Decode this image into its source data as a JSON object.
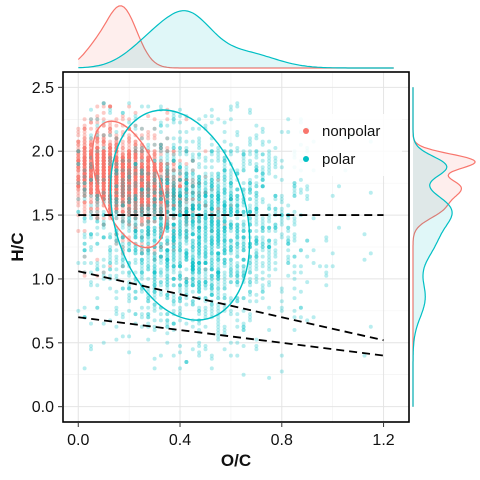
{
  "chart_data": {
    "type": "scatter",
    "xlabel": "O/C",
    "ylabel": "H/C",
    "xlim": [
      -0.06,
      1.3
    ],
    "ylim": [
      -0.12,
      2.62
    ],
    "xticks": [
      0.0,
      0.4,
      0.8,
      1.2
    ],
    "xtick_labels": [
      "0.0",
      "0.4",
      "0.8",
      "1.2"
    ],
    "yticks": [
      0.0,
      0.5,
      1.0,
      1.5,
      2.0,
      2.5
    ],
    "ytick_labels": [
      "0.0",
      "0.5",
      "1.0",
      "1.5",
      "2.0",
      "2.5"
    ],
    "grid": true,
    "legend_position": "top-right",
    "series": [
      {
        "name": "nonpolar",
        "color": "#F8766D",
        "point_count": 2600,
        "center": [
          0.18,
          1.78
        ],
        "spread": [
          0.1,
          0.13
        ],
        "ellipse": {
          "center": [
            0.2,
            1.74
          ],
          "semi_axes": [
            0.12,
            0.52
          ],
          "tilt_deg": 20
        }
      },
      {
        "name": "polar",
        "color": "#00BFC4",
        "point_count": 2400,
        "center": [
          0.46,
          1.38
        ],
        "spread": [
          0.18,
          0.35
        ],
        "ellipse": {
          "center": [
            0.4,
            1.5
          ],
          "semi_axes": [
            0.26,
            0.84
          ],
          "tilt_deg": 15
        }
      }
    ],
    "reference_lines": [
      {
        "x": [
          0.0,
          1.2
        ],
        "y": [
          1.5,
          1.5
        ],
        "style": "dashed"
      },
      {
        "x": [
          0.0,
          1.2
        ],
        "y": [
          1.06,
          0.52
        ],
        "style": "dashed"
      },
      {
        "x": [
          0.0,
          1.2
        ],
        "y": [
          0.7,
          0.4
        ],
        "style": "dashed"
      }
    ],
    "marginal_x_density": {
      "axis": "O/C",
      "nonpolar": {
        "peaks": [
          [
            0.17,
            1.0
          ],
          [
            0.06,
            0.25
          ]
        ],
        "widths": [
          0.06,
          0.05
        ]
      },
      "polar": {
        "peaks": [
          [
            0.44,
            0.7
          ],
          [
            0.3,
            0.45
          ],
          [
            0.65,
            0.25
          ]
        ],
        "widths": [
          0.09,
          0.1,
          0.12
        ]
      }
    },
    "marginal_y_density": {
      "axis": "H/C",
      "nonpolar": {
        "peaks": [
          [
            1.92,
            1.0
          ],
          [
            1.72,
            0.75
          ],
          [
            1.55,
            0.45
          ]
        ],
        "widths": [
          0.06,
          0.08,
          0.08
        ]
      },
      "polar": {
        "peaks": [
          [
            1.88,
            0.55
          ],
          [
            1.55,
            0.55
          ],
          [
            1.3,
            0.35
          ],
          [
            0.85,
            0.2
          ]
        ],
        "widths": [
          0.08,
          0.12,
          0.15,
          0.15
        ]
      }
    }
  }
}
